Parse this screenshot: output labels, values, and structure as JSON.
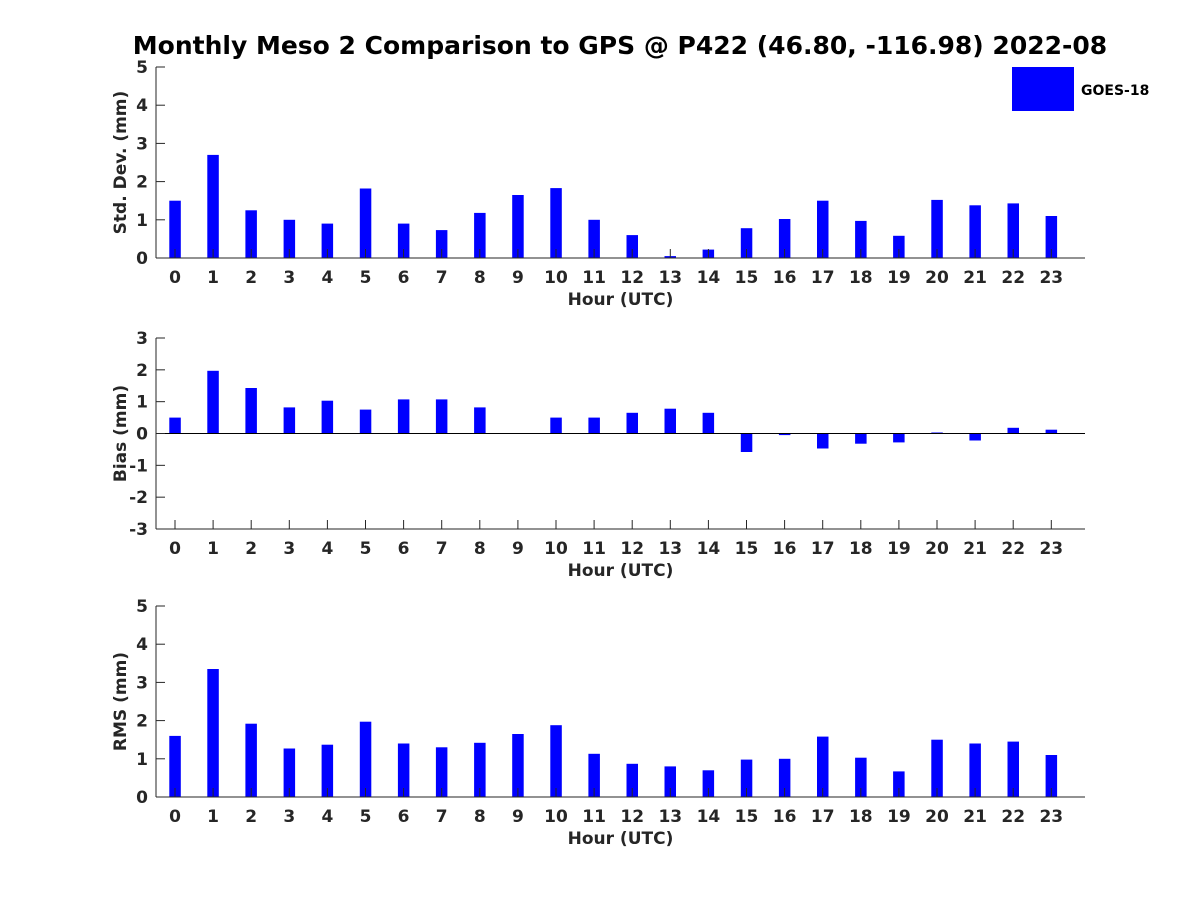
{
  "title": "Monthly Meso 2 Comparison to GPS @ P422 (46.80, -116.98) 2022-08",
  "colors": {
    "bar": "#0000ff",
    "axis": "#262626",
    "background": "#ffffff"
  },
  "legend": {
    "label": "GOES-18",
    "placement": "top-right"
  },
  "chart_data": [
    {
      "type": "bar",
      "xlabel": "Hour (UTC)",
      "ylabel": "Std. Dev. (mm)",
      "ylim": [
        0,
        5
      ],
      "yticks": [
        0,
        1,
        2,
        3,
        4,
        5
      ],
      "categories": [
        "0",
        "1",
        "2",
        "3",
        "4",
        "5",
        "6",
        "7",
        "8",
        "9",
        "10",
        "11",
        "12",
        "13",
        "14",
        "15",
        "16",
        "17",
        "18",
        "19",
        "20",
        "21",
        "22",
        "23"
      ],
      "series": [
        {
          "name": "GOES-18",
          "values": [
            1.5,
            2.7,
            1.25,
            1.0,
            0.9,
            1.82,
            0.9,
            0.73,
            1.18,
            1.65,
            1.83,
            1.0,
            0.6,
            0.05,
            0.22,
            0.78,
            1.02,
            1.5,
            0.97,
            0.58,
            1.52,
            1.38,
            1.43,
            1.1
          ]
        }
      ],
      "grid": false
    },
    {
      "type": "bar",
      "xlabel": "Hour (UTC)",
      "ylabel": "Bias (mm)",
      "ylim": [
        -3,
        3
      ],
      "yticks": [
        -3,
        -2,
        -1,
        0,
        1,
        2,
        3
      ],
      "zero_line": true,
      "categories": [
        "0",
        "1",
        "2",
        "3",
        "4",
        "5",
        "6",
        "7",
        "8",
        "9",
        "10",
        "11",
        "12",
        "13",
        "14",
        "15",
        "16",
        "17",
        "18",
        "19",
        "20",
        "21",
        "22",
        "23"
      ],
      "series": [
        {
          "name": "GOES-18",
          "values": [
            0.5,
            1.97,
            1.43,
            0.82,
            1.03,
            0.75,
            1.07,
            1.07,
            0.82,
            0.0,
            0.5,
            0.5,
            0.65,
            0.78,
            0.65,
            -0.58,
            -0.05,
            -0.47,
            -0.32,
            -0.28,
            0.03,
            -0.22,
            0.18,
            0.12
          ]
        }
      ],
      "grid": false
    },
    {
      "type": "bar",
      "xlabel": "Hour (UTC)",
      "ylabel": "RMS (mm)",
      "ylim": [
        0,
        5
      ],
      "yticks": [
        0,
        1,
        2,
        3,
        4,
        5
      ],
      "categories": [
        "0",
        "1",
        "2",
        "3",
        "4",
        "5",
        "6",
        "7",
        "8",
        "9",
        "10",
        "11",
        "12",
        "13",
        "14",
        "15",
        "16",
        "17",
        "18",
        "19",
        "20",
        "21",
        "22",
        "23"
      ],
      "series": [
        {
          "name": "GOES-18",
          "values": [
            1.6,
            3.35,
            1.92,
            1.27,
            1.37,
            1.97,
            1.4,
            1.3,
            1.42,
            1.65,
            1.88,
            1.13,
            0.87,
            0.8,
            0.7,
            0.98,
            1.0,
            1.58,
            1.03,
            0.67,
            1.5,
            1.4,
            1.45,
            1.1
          ]
        }
      ],
      "grid": false
    }
  ]
}
